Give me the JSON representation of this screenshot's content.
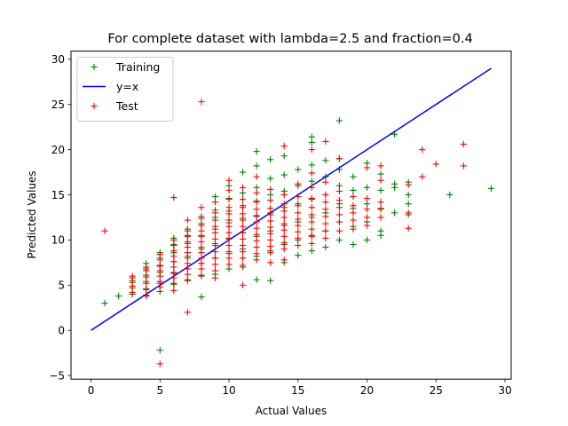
{
  "chart_data": {
    "type": "scatter",
    "title": "For complete dataset with lambda=2.5 and fraction=0.4",
    "xlabel": "Actual Values",
    "ylabel": "Predicted Values",
    "xlim": [
      -1.45,
      30.45
    ],
    "ylim": [
      -5.4,
      30.9
    ],
    "xticks": [
      0,
      5,
      10,
      15,
      20,
      25,
      30
    ],
    "yticks": [
      -5,
      0,
      5,
      10,
      15,
      20,
      25,
      30
    ],
    "grid": false,
    "legend_position": "top-left",
    "series": [
      {
        "name": "Training",
        "marker": "+",
        "color": "#008000",
        "points": [
          [
            1,
            3.0
          ],
          [
            2,
            3.8
          ],
          [
            3,
            4.0
          ],
          [
            3,
            4.7
          ],
          [
            3,
            5.3
          ],
          [
            3,
            5.8
          ],
          [
            4,
            3.9
          ],
          [
            4,
            4.6
          ],
          [
            4,
            5.4
          ],
          [
            4,
            6.1
          ],
          [
            4,
            6.8
          ],
          [
            4,
            7.4
          ],
          [
            5,
            -2.2
          ],
          [
            5,
            4.3
          ],
          [
            5,
            5.2
          ],
          [
            5,
            6.4
          ],
          [
            5,
            7.2
          ],
          [
            5,
            8.0
          ],
          [
            5,
            8.6
          ],
          [
            6,
            5.1
          ],
          [
            6,
            6.3
          ],
          [
            6,
            7.6
          ],
          [
            6,
            8.6
          ],
          [
            6,
            9.5
          ],
          [
            6,
            10.2
          ],
          [
            7,
            5.6
          ],
          [
            7,
            6.8
          ],
          [
            7,
            8.2
          ],
          [
            7,
            9.6
          ],
          [
            7,
            10.5
          ],
          [
            7,
            11.2
          ],
          [
            8,
            3.7
          ],
          [
            8,
            6.0
          ],
          [
            8,
            7.4
          ],
          [
            8,
            9.0
          ],
          [
            8,
            10.5
          ],
          [
            8,
            11.8
          ],
          [
            8,
            12.6
          ],
          [
            9,
            6.2
          ],
          [
            9,
            8.0
          ],
          [
            9,
            9.6
          ],
          [
            9,
            11.2
          ],
          [
            9,
            12.5
          ],
          [
            9,
            13.3
          ],
          [
            9,
            14.8
          ],
          [
            10,
            6.8
          ],
          [
            10,
            8.5
          ],
          [
            10,
            10.2
          ],
          [
            10,
            11.9
          ],
          [
            10,
            13.2
          ],
          [
            10,
            14.6
          ],
          [
            10,
            16.0
          ],
          [
            11,
            7.0
          ],
          [
            11,
            9.0
          ],
          [
            11,
            10.8
          ],
          [
            11,
            12.4
          ],
          [
            11,
            13.8
          ],
          [
            11,
            15.2
          ],
          [
            11,
            17.5
          ],
          [
            12,
            5.6
          ],
          [
            12,
            8.2
          ],
          [
            12,
            10.4
          ],
          [
            12,
            12.6
          ],
          [
            12,
            14.3
          ],
          [
            12,
            15.8
          ],
          [
            12,
            18.2
          ],
          [
            12,
            19.8
          ],
          [
            13,
            5.5
          ],
          [
            13,
            8.8
          ],
          [
            13,
            11.0
          ],
          [
            13,
            13.0
          ],
          [
            13,
            15.0
          ],
          [
            13,
            16.8
          ],
          [
            13,
            18.9
          ],
          [
            14,
            7.5
          ],
          [
            14,
            9.5
          ],
          [
            14,
            11.6
          ],
          [
            14,
            13.6
          ],
          [
            14,
            15.4
          ],
          [
            14,
            17.2
          ],
          [
            14,
            19.3
          ],
          [
            15,
            8.3
          ],
          [
            15,
            10.0
          ],
          [
            15,
            12.0
          ],
          [
            15,
            14.0
          ],
          [
            15,
            16.0
          ],
          [
            15,
            17.8
          ],
          [
            16,
            8.8
          ],
          [
            16,
            10.5
          ],
          [
            16,
            12.5
          ],
          [
            16,
            14.5
          ],
          [
            16,
            16.5
          ],
          [
            16,
            18.3
          ],
          [
            16,
            20.8
          ],
          [
            16,
            21.4
          ],
          [
            17,
            9.2
          ],
          [
            17,
            11.0
          ],
          [
            17,
            13.0
          ],
          [
            17,
            15.0
          ],
          [
            17,
            17.0
          ],
          [
            17,
            18.8
          ],
          [
            18,
            10.0
          ],
          [
            18,
            12.0
          ],
          [
            18,
            14.0
          ],
          [
            18,
            16.0
          ],
          [
            18,
            17.8
          ],
          [
            18,
            19.0
          ],
          [
            18,
            23.2
          ],
          [
            19,
            9.5
          ],
          [
            19,
            11.5
          ],
          [
            19,
            13.5
          ],
          [
            19,
            15.5
          ],
          [
            19,
            17.0
          ],
          [
            20,
            10.0
          ],
          [
            20,
            12.0
          ],
          [
            20,
            14.0
          ],
          [
            20,
            15.8
          ],
          [
            20,
            18.5
          ],
          [
            21,
            10.5
          ],
          [
            21,
            11.0
          ],
          [
            21,
            13.5
          ],
          [
            21,
            15.5
          ],
          [
            21,
            17.3
          ],
          [
            22,
            13.0
          ],
          [
            22,
            15.8
          ],
          [
            22,
            16.2
          ],
          [
            22,
            21.7
          ],
          [
            23,
            12.8
          ],
          [
            23,
            14.0
          ],
          [
            23,
            15.0
          ],
          [
            23,
            16.4
          ],
          [
            26,
            15.0
          ],
          [
            29,
            15.7
          ]
        ]
      },
      {
        "name": "y=x",
        "line": true,
        "color": "#0000ff",
        "points": [
          [
            0,
            0
          ],
          [
            29,
            29
          ]
        ]
      },
      {
        "name": "Test",
        "marker": "+",
        "color": "#ff0000",
        "points": [
          [
            1,
            11.0
          ],
          [
            3,
            4.2
          ],
          [
            3,
            4.9
          ],
          [
            3,
            5.5
          ],
          [
            3,
            6.0
          ],
          [
            4,
            3.8
          ],
          [
            4,
            4.5
          ],
          [
            4,
            5.2
          ],
          [
            4,
            5.9
          ],
          [
            4,
            6.6
          ],
          [
            4,
            7.0
          ],
          [
            5,
            -3.7
          ],
          [
            5,
            4.8
          ],
          [
            5,
            5.4
          ],
          [
            5,
            6.0
          ],
          [
            5,
            6.6
          ],
          [
            5,
            7.1
          ],
          [
            5,
            7.8
          ],
          [
            5,
            8.4
          ],
          [
            6,
            4.4
          ],
          [
            6,
            5.2
          ],
          [
            6,
            5.8
          ],
          [
            6,
            6.4
          ],
          [
            6,
            7.0
          ],
          [
            6,
            7.6
          ],
          [
            6,
            8.2
          ],
          [
            6,
            8.8
          ],
          [
            6,
            9.4
          ],
          [
            6,
            10.0
          ],
          [
            6,
            14.7
          ],
          [
            7,
            2.0
          ],
          [
            7,
            5.5
          ],
          [
            7,
            6.2
          ],
          [
            7,
            6.8
          ],
          [
            7,
            7.4
          ],
          [
            7,
            8.0
          ],
          [
            7,
            8.6
          ],
          [
            7,
            9.2
          ],
          [
            7,
            9.8
          ],
          [
            7,
            10.4
          ],
          [
            7,
            11.0
          ],
          [
            7,
            12.2
          ],
          [
            8,
            6.1
          ],
          [
            8,
            6.8
          ],
          [
            8,
            7.4
          ],
          [
            8,
            8.0
          ],
          [
            8,
            8.6
          ],
          [
            8,
            9.2
          ],
          [
            8,
            9.8
          ],
          [
            8,
            10.4
          ],
          [
            8,
            11.0
          ],
          [
            8,
            11.6
          ],
          [
            8,
            12.4
          ],
          [
            8,
            13.6
          ],
          [
            8,
            25.3
          ],
          [
            9,
            5.8
          ],
          [
            9,
            6.6
          ],
          [
            9,
            7.3
          ],
          [
            9,
            8.0
          ],
          [
            9,
            8.7
          ],
          [
            9,
            9.4
          ],
          [
            9,
            10.1
          ],
          [
            9,
            10.8
          ],
          [
            9,
            11.5
          ],
          [
            9,
            12.2
          ],
          [
            9,
            13.0
          ],
          [
            9,
            14.2
          ],
          [
            10,
            7.3
          ],
          [
            10,
            8.0
          ],
          [
            10,
            8.7
          ],
          [
            10,
            9.4
          ],
          [
            10,
            10.1
          ],
          [
            10,
            10.8
          ],
          [
            10,
            11.5
          ],
          [
            10,
            12.2
          ],
          [
            10,
            12.9
          ],
          [
            10,
            13.6
          ],
          [
            10,
            14.5
          ],
          [
            10,
            15.5
          ],
          [
            10,
            16.6
          ],
          [
            11,
            5.0
          ],
          [
            11,
            7.2
          ],
          [
            11,
            8.0
          ],
          [
            11,
            8.7
          ],
          [
            11,
            9.4
          ],
          [
            11,
            10.1
          ],
          [
            11,
            10.8
          ],
          [
            11,
            11.5
          ],
          [
            11,
            12.2
          ],
          [
            11,
            12.9
          ],
          [
            11,
            13.6
          ],
          [
            11,
            14.5
          ],
          [
            11,
            15.8
          ],
          [
            12,
            7.8
          ],
          [
            12,
            8.5
          ],
          [
            12,
            9.2
          ],
          [
            12,
            9.9
          ],
          [
            12,
            10.6
          ],
          [
            12,
            11.3
          ],
          [
            12,
            12.0
          ],
          [
            12,
            12.7
          ],
          [
            12,
            13.4
          ],
          [
            12,
            14.2
          ],
          [
            12,
            15.2
          ],
          [
            12,
            17.0
          ],
          [
            13,
            7.5
          ],
          [
            13,
            8.6
          ],
          [
            13,
            9.3
          ],
          [
            13,
            10.0
          ],
          [
            13,
            10.7
          ],
          [
            13,
            11.4
          ],
          [
            13,
            12.1
          ],
          [
            13,
            12.8
          ],
          [
            13,
            13.5
          ],
          [
            13,
            14.4
          ],
          [
            13,
            15.6
          ],
          [
            14,
            7.8
          ],
          [
            14,
            9.0
          ],
          [
            14,
            9.7
          ],
          [
            14,
            10.4
          ],
          [
            14,
            11.1
          ],
          [
            14,
            11.8
          ],
          [
            14,
            12.5
          ],
          [
            14,
            13.2
          ],
          [
            14,
            14.0
          ],
          [
            14,
            15.0
          ],
          [
            14,
            20.4
          ],
          [
            15,
            9.4
          ],
          [
            15,
            10.2
          ],
          [
            15,
            10.9
          ],
          [
            15,
            11.6
          ],
          [
            15,
            12.3
          ],
          [
            15,
            13.0
          ],
          [
            15,
            13.8
          ],
          [
            15,
            14.8
          ],
          [
            15,
            16.2
          ],
          [
            16,
            9.6
          ],
          [
            16,
            10.4
          ],
          [
            16,
            11.2
          ],
          [
            16,
            12.0
          ],
          [
            16,
            12.8
          ],
          [
            16,
            13.6
          ],
          [
            16,
            14.6
          ],
          [
            16,
            15.8
          ],
          [
            16,
            17.4
          ],
          [
            16,
            20.0
          ],
          [
            17,
            10.2
          ],
          [
            17,
            11.0
          ],
          [
            17,
            11.8
          ],
          [
            17,
            12.6
          ],
          [
            17,
            13.4
          ],
          [
            17,
            14.2
          ],
          [
            17,
            15.0
          ],
          [
            17,
            16.4
          ],
          [
            17,
            20.9
          ],
          [
            18,
            11.0
          ],
          [
            18,
            12.0
          ],
          [
            18,
            12.8
          ],
          [
            18,
            13.6
          ],
          [
            18,
            14.4
          ],
          [
            18,
            15.4
          ],
          [
            18,
            19.0
          ],
          [
            19,
            11.2
          ],
          [
            19,
            12.2
          ],
          [
            19,
            13.0
          ],
          [
            19,
            13.8
          ],
          [
            19,
            14.8
          ],
          [
            20,
            11.6
          ],
          [
            20,
            12.5
          ],
          [
            20,
            13.4
          ],
          [
            20,
            14.6
          ],
          [
            20,
            18.0
          ],
          [
            21,
            12.5
          ],
          [
            21,
            13.4
          ],
          [
            21,
            14.2
          ],
          [
            21,
            16.6
          ],
          [
            21,
            18.2
          ],
          [
            23,
            11.3
          ],
          [
            23,
            13.0
          ],
          [
            23,
            16.1
          ],
          [
            24,
            17.0
          ],
          [
            24,
            20.0
          ],
          [
            25,
            18.4
          ],
          [
            27,
            18.2
          ],
          [
            27,
            20.6
          ]
        ]
      }
    ]
  }
}
